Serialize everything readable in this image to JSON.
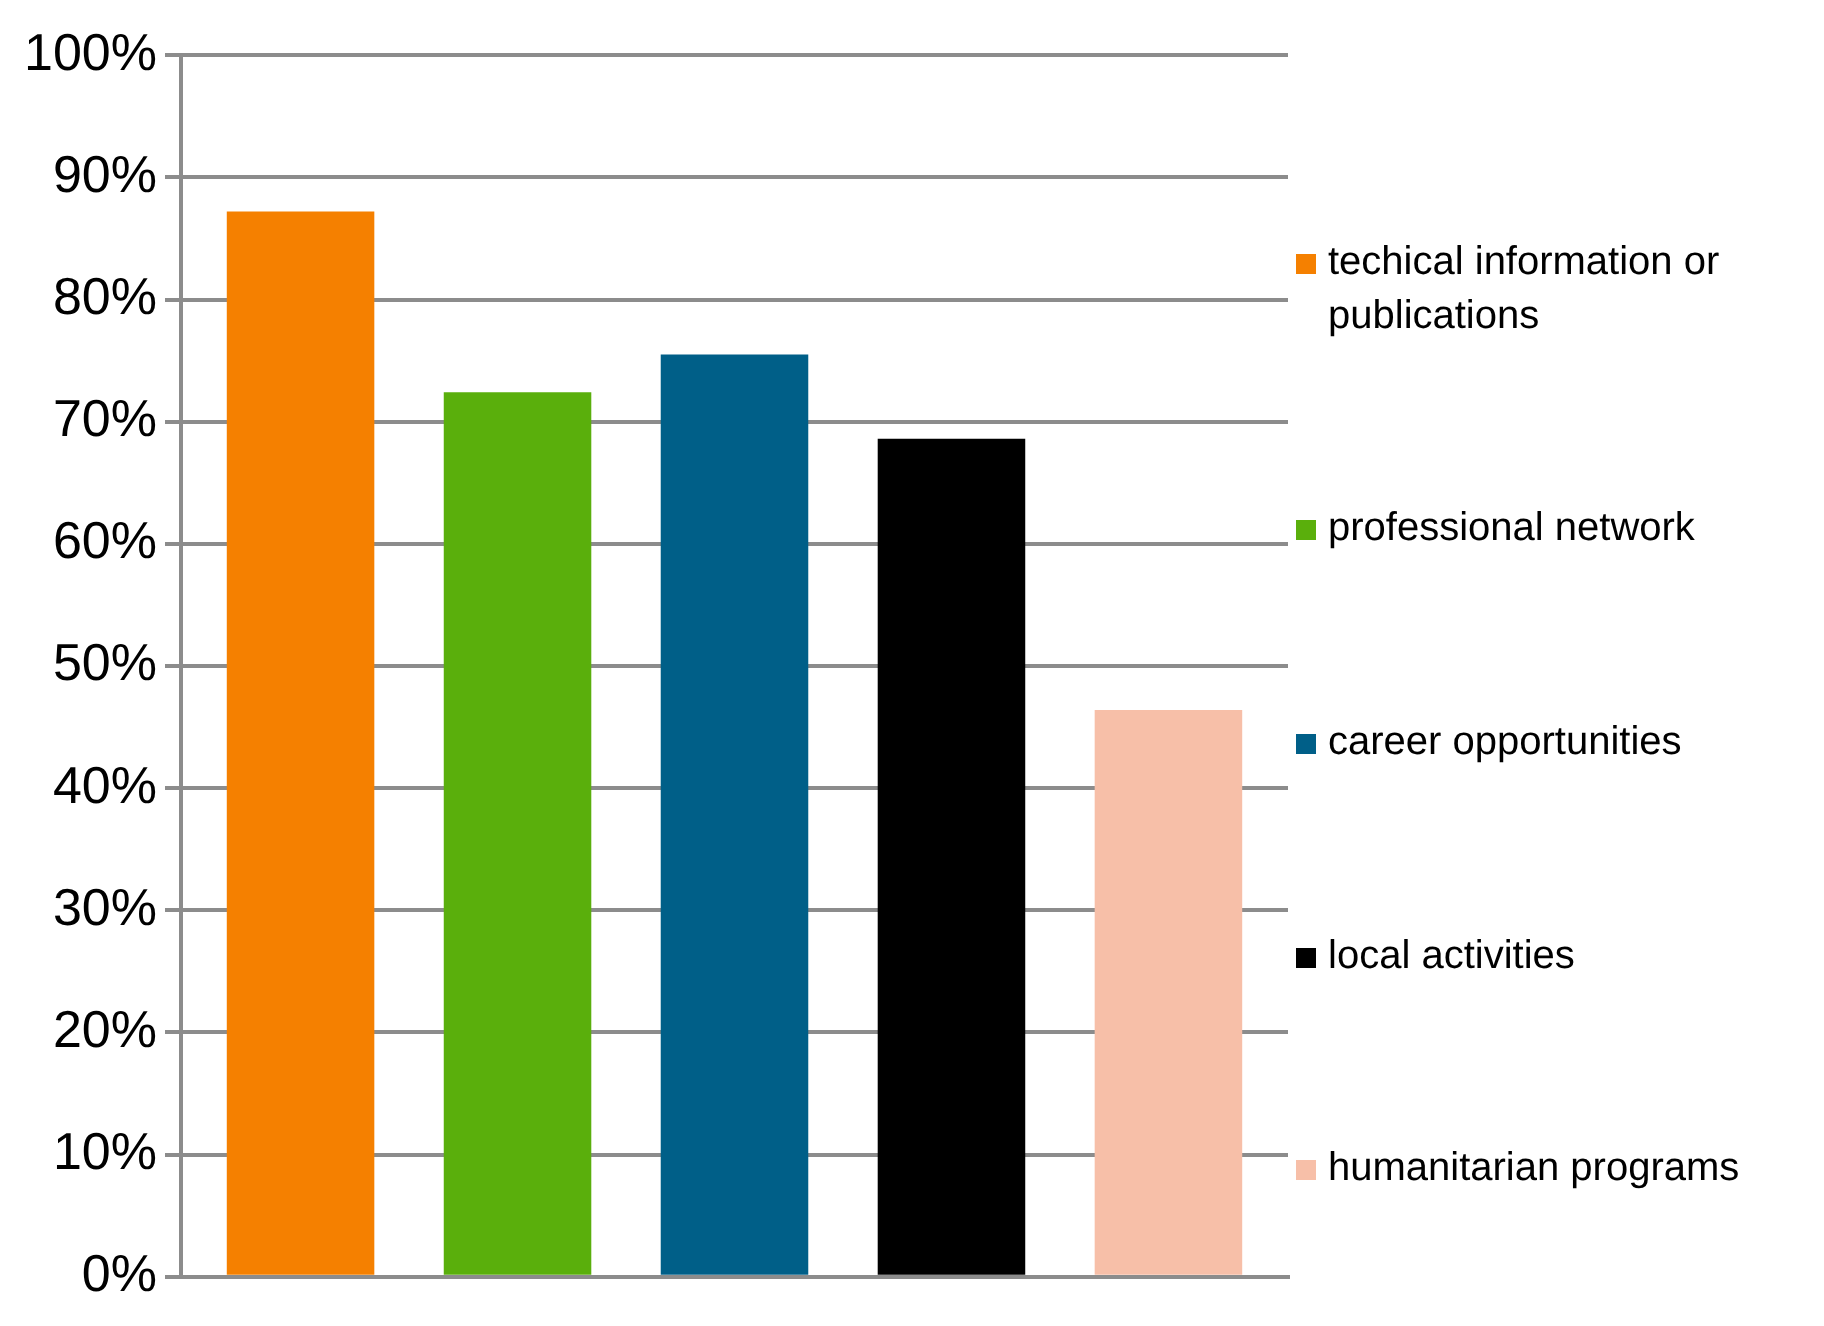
{
  "chart_data": {
    "type": "bar",
    "categories": [
      null
    ],
    "series": [
      {
        "name": "techical information or publications",
        "color": "#f58000",
        "values": [
          87.2
        ]
      },
      {
        "name": "professional network",
        "color": "#5aaf0c",
        "values": [
          72.4
        ]
      },
      {
        "name": "career opportunities",
        "color": "#005f88",
        "values": [
          75.5
        ]
      },
      {
        "name": "local activities",
        "color": "#000000",
        "values": [
          68.6
        ]
      },
      {
        "name": "humanitarian programs",
        "color": "#f7bfa8",
        "values": [
          46.4
        ]
      }
    ],
    "ylim": [
      0,
      100
    ],
    "yticks": [
      {
        "value": 0,
        "label": "0%"
      },
      {
        "value": 10,
        "label": "10%"
      },
      {
        "value": 20,
        "label": "20%"
      },
      {
        "value": 30,
        "label": "30%"
      },
      {
        "value": 40,
        "label": "40%"
      },
      {
        "value": 50,
        "label": "50%"
      },
      {
        "value": 60,
        "label": "60%"
      },
      {
        "value": 70,
        "label": "70%"
      },
      {
        "value": 80,
        "label": "80%"
      },
      {
        "value": 90,
        "label": "90%"
      },
      {
        "value": 100,
        "label": "100%"
      }
    ],
    "grid": "y",
    "legend": "right",
    "tick_labels": "y"
  }
}
